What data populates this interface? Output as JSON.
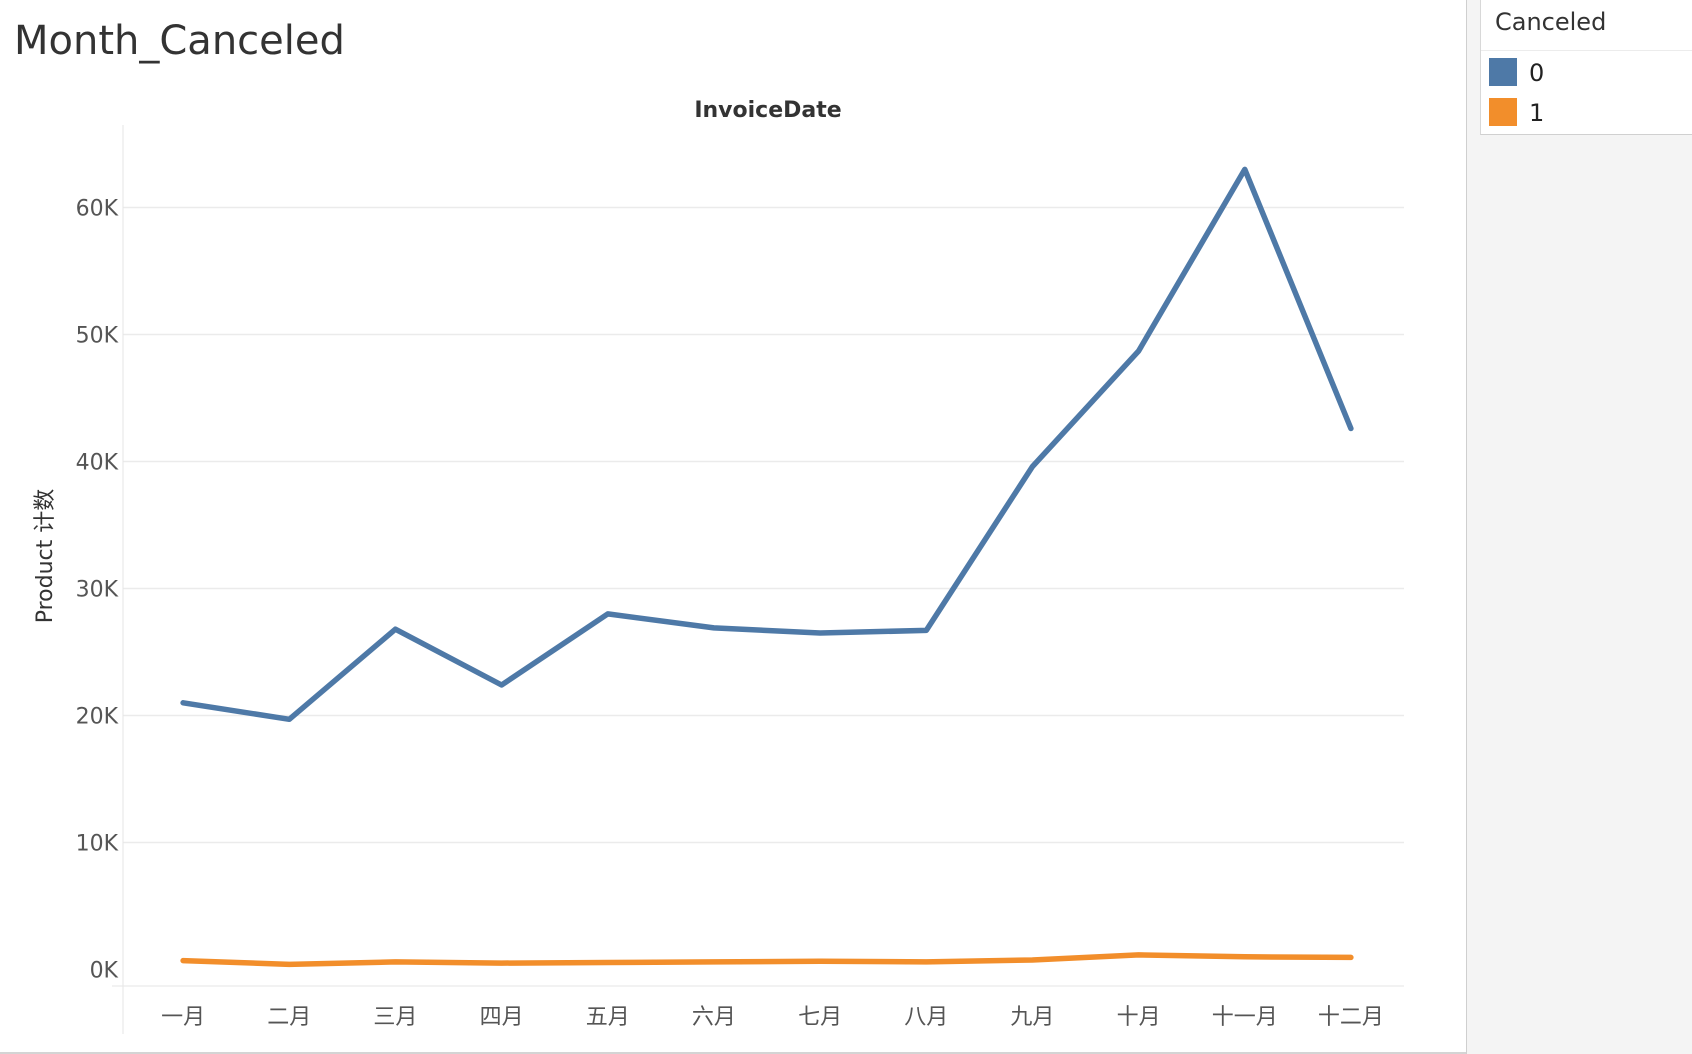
{
  "sheet": {
    "title": "Month_Canceled"
  },
  "legend": {
    "title": "Canceled",
    "items": [
      {
        "label": "0",
        "color": "#4e79a7"
      },
      {
        "label": "1",
        "color": "#f28e2b"
      }
    ]
  },
  "chart_data": {
    "type": "line",
    "title": "InvoiceDate",
    "xlabel": "",
    "ylabel": "Product 计数",
    "categories": [
      "一月",
      "二月",
      "三月",
      "四月",
      "五月",
      "六月",
      "七月",
      "八月",
      "九月",
      "十月",
      "十一月",
      "十二月"
    ],
    "yticks": [
      0,
      10000,
      20000,
      30000,
      40000,
      50000,
      60000
    ],
    "ytick_labels": [
      "0K",
      "10K",
      "20K",
      "30K",
      "40K",
      "50K",
      "60K"
    ],
    "ylim": [
      -1300,
      66500
    ],
    "grid": true,
    "legend_position": "top-right",
    "series": [
      {
        "name": "0",
        "color": "#4e79a7",
        "values": [
          21000,
          19700,
          26800,
          22400,
          28000,
          26900,
          26500,
          26700,
          39600,
          48700,
          63000,
          42600
        ]
      },
      {
        "name": "1",
        "color": "#f28e2b",
        "values": [
          700,
          400,
          600,
          500,
          550,
          600,
          650,
          600,
          750,
          1150,
          1000,
          950
        ]
      }
    ]
  }
}
